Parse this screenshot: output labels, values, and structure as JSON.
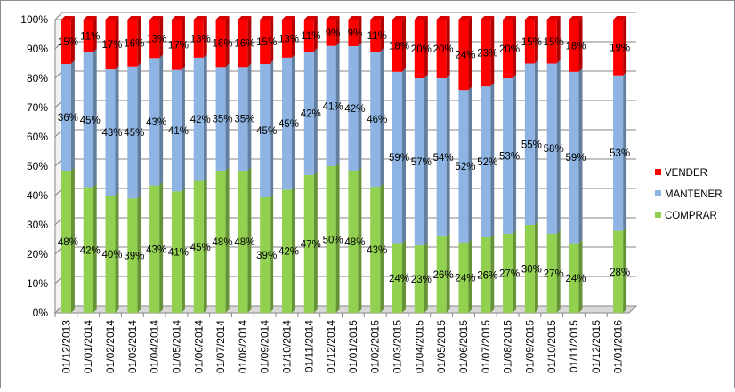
{
  "chart_data": {
    "type": "bar",
    "stacked": true,
    "percent_stacked": true,
    "title": "",
    "xlabel": "",
    "ylabel": "",
    "ylim": [
      0,
      100
    ],
    "y_ticks": [
      "0%",
      "10%",
      "20%",
      "30%",
      "40%",
      "50%",
      "60%",
      "70%",
      "80%",
      "90%",
      "100%"
    ],
    "grid": true,
    "legend_position": "right",
    "categories": [
      "01/12/2013",
      "01/01/2014",
      "01/02/2014",
      "01/03/2014",
      "01/04/2014",
      "01/05/2014",
      "01/06/2014",
      "01/07/2014",
      "01/08/2014",
      "01/09/2014",
      "01/10/2014",
      "01/11/2014",
      "01/12/2014",
      "01/01/2015",
      "01/02/2015",
      "01/03/2015",
      "01/04/2015",
      "01/05/2015",
      "01/06/2015",
      "01/07/2015",
      "01/08/2015",
      "01/09/2015",
      "01/10/2015",
      "01/11/2015",
      "01/12/2015",
      "01/01/2016"
    ],
    "series": [
      {
        "name": "COMPRAR",
        "color": "#92d050",
        "values": [
          48,
          42,
          40,
          39,
          43,
          41,
          45,
          48,
          48,
          39,
          42,
          47,
          50,
          48,
          43,
          24,
          23,
          26,
          24,
          26,
          27,
          30,
          27,
          24,
          null,
          28
        ]
      },
      {
        "name": "MANTENER",
        "color": "#8db4e2",
        "values": [
          36,
          45,
          43,
          45,
          43,
          41,
          42,
          35,
          35,
          45,
          45,
          42,
          41,
          42,
          46,
          59,
          57,
          54,
          52,
          52,
          53,
          55,
          58,
          59,
          null,
          53
        ]
      },
      {
        "name": "VENDER",
        "color": "#ff0000",
        "values": [
          15,
          11,
          17,
          16,
          13,
          17,
          13,
          16,
          16,
          15,
          13,
          11,
          9,
          9,
          11,
          18,
          20,
          20,
          24,
          23,
          20,
          15,
          15,
          18,
          null,
          19
        ]
      }
    ]
  }
}
